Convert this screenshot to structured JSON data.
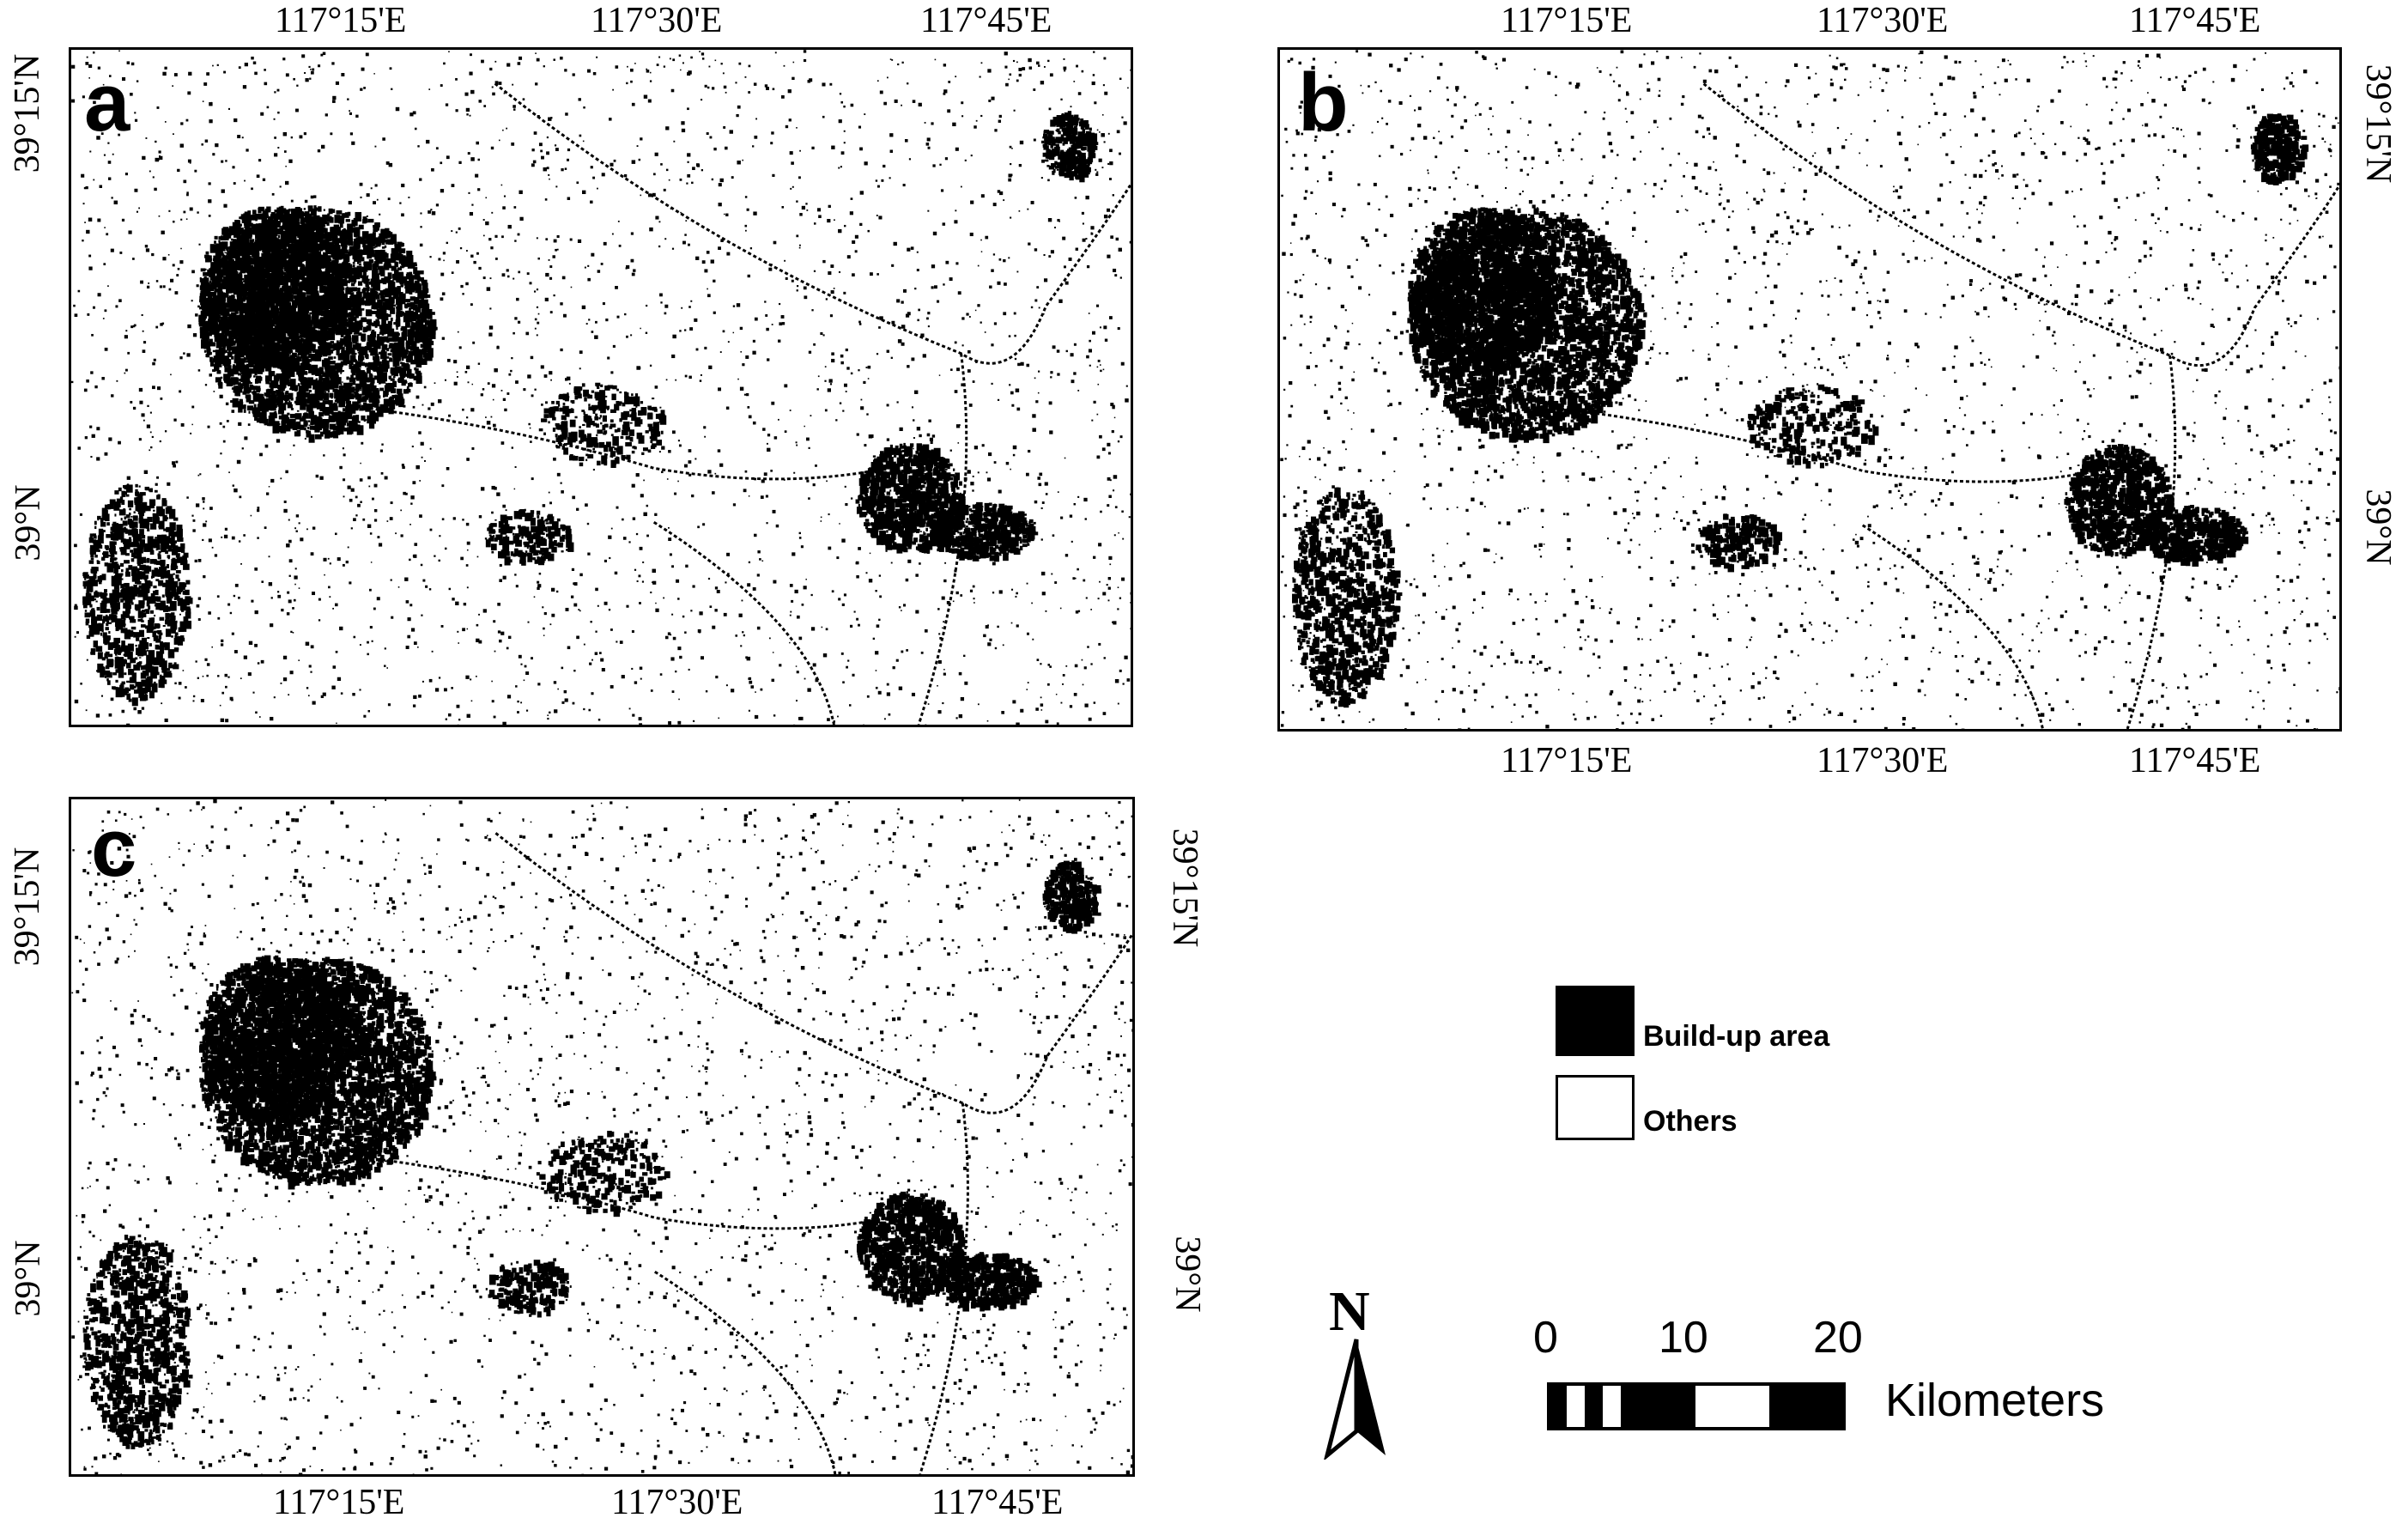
{
  "panels": [
    {
      "letter": "a",
      "top_labels": [
        "117°15'E",
        "117°30'E",
        "117°45'E"
      ],
      "bottom_labels": [],
      "left_labels": [
        "39°15'N",
        "39°N"
      ],
      "right_labels": []
    },
    {
      "letter": "b",
      "top_labels": [
        "117°15'E",
        "117°30'E",
        "117°45'E"
      ],
      "bottom_labels": [
        "117°15'E",
        "117°30'E",
        "117°45'E"
      ],
      "left_labels": [],
      "right_labels": [
        "39°15'N",
        "39°N"
      ]
    },
    {
      "letter": "c",
      "top_labels": [],
      "bottom_labels": [
        "117°15'E",
        "117°30'E",
        "117°45'E"
      ],
      "left_labels": [
        "39°15'N",
        "39°N"
      ],
      "right_labels": [
        "39°15'N",
        "39°N"
      ]
    }
  ],
  "legend": {
    "items": [
      {
        "label": "Build-up area",
        "color": "#000000"
      },
      {
        "label": "Others",
        "color": "#ffffff"
      }
    ]
  },
  "north_arrow": {
    "letter": "N"
  },
  "scale_bar": {
    "ticks": [
      "0",
      "10",
      "20"
    ],
    "unit": "Kilometers"
  },
  "colors": {
    "built_up": "#000000",
    "others": "#ffffff"
  }
}
